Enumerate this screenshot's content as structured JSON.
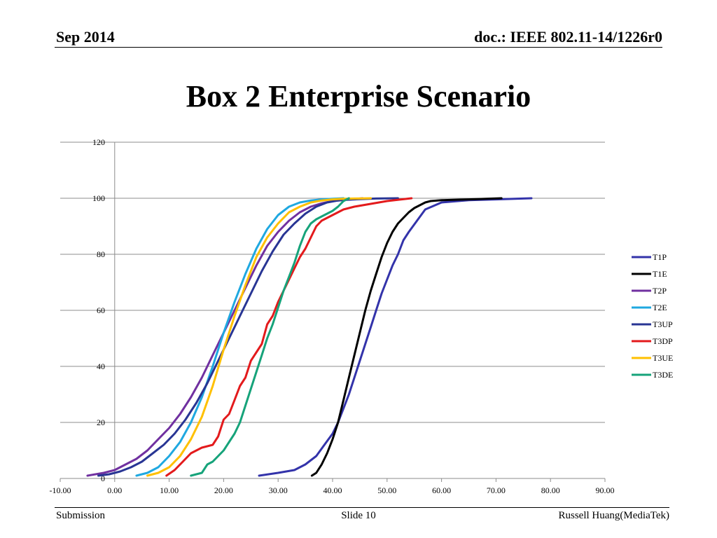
{
  "header": {
    "date": "Sep 2014",
    "doc": "doc.: IEEE 802.11-14/1226r0"
  },
  "slide_title": "Box 2 Enterprise Scenario",
  "footer": {
    "left": "Submission",
    "center": "Slide 10",
    "right": "Russell Huang(MediaTek)"
  },
  "chart_data": {
    "type": "line",
    "title": "",
    "xlabel": "",
    "ylabel": "",
    "xlim": [
      -10,
      90
    ],
    "ylim": [
      0,
      120
    ],
    "x_ticks": [
      "-10.00",
      "0.00",
      "10.00",
      "20.00",
      "30.00",
      "40.00",
      "50.00",
      "60.00",
      "70.00",
      "80.00",
      "90.00"
    ],
    "y_ticks": [
      "0",
      "20",
      "40",
      "60",
      "80",
      "100",
      "120"
    ],
    "grid": "horizontal",
    "legend_position": "right",
    "series": [
      {
        "name": "T1P",
        "color": "#3333aa",
        "x": [
          26.5,
          30,
          33,
          35,
          37,
          38.5,
          40,
          41,
          42,
          43,
          44,
          45,
          46,
          47,
          48,
          49,
          50,
          51,
          52,
          53,
          54,
          55.5,
          57,
          60,
          65,
          70,
          76.5
        ],
        "y": [
          1,
          2,
          3,
          5,
          8,
          12,
          16,
          20,
          25,
          30,
          36,
          42,
          48,
          54,
          60,
          66,
          71,
          76,
          80,
          85,
          88,
          92,
          96,
          98.5,
          99.3,
          99.6,
          100
        ]
      },
      {
        "name": "T1E",
        "color": "#000000",
        "x": [
          36.2,
          37,
          38,
          39,
          40,
          41,
          42,
          43,
          44,
          45,
          46,
          47,
          48,
          49,
          50,
          51,
          52,
          53,
          54,
          55,
          56,
          57,
          58,
          60,
          65,
          71
        ],
        "y": [
          1,
          2,
          5,
          9,
          14,
          20,
          28,
          36,
          44,
          52,
          60,
          67,
          73,
          79,
          84,
          88,
          91,
          93,
          95,
          96.5,
          97.5,
          98.5,
          99,
          99.3,
          99.6,
          100
        ]
      },
      {
        "name": "T2P",
        "color": "#7030a0",
        "x": [
          -5,
          -2,
          0,
          2,
          4,
          6,
          8,
          10,
          12,
          14,
          16,
          18,
          20,
          22,
          24,
          26,
          28,
          30,
          32,
          34,
          36,
          38,
          40,
          42,
          44,
          45.5
        ],
        "y": [
          1,
          2,
          3,
          5,
          7,
          10,
          14,
          18,
          23,
          29,
          36,
          44,
          52,
          60,
          68,
          76,
          83,
          88,
          92,
          95,
          97,
          98.2,
          99,
          99.4,
          99.7,
          100
        ]
      },
      {
        "name": "T2E",
        "color": "#1fa8e0",
        "x": [
          4,
          6,
          8,
          10,
          12,
          14,
          16,
          18,
          20,
          22,
          24,
          26,
          28,
          30,
          32,
          34,
          36,
          38,
          40,
          42
        ],
        "y": [
          1,
          2,
          4,
          8,
          13,
          20,
          29,
          40,
          52,
          63,
          73,
          82,
          89,
          94,
          97,
          98.5,
          99.2,
          99.6,
          99.8,
          100
        ]
      },
      {
        "name": "T3UP",
        "color": "#283594",
        "x": [
          -3,
          -1,
          1,
          3,
          5,
          7,
          9,
          11,
          13,
          15,
          17,
          19,
          21,
          23,
          25,
          27,
          29,
          31,
          33,
          35,
          37,
          39,
          41,
          43,
          45,
          48,
          52
        ],
        "y": [
          1,
          1.5,
          2.5,
          4,
          6,
          9,
          12,
          16,
          21,
          27,
          34,
          42,
          50,
          58,
          66,
          74,
          81,
          87,
          91,
          94.5,
          97,
          98.5,
          99.2,
          99.5,
          99.7,
          99.9,
          100
        ]
      },
      {
        "name": "T3DP",
        "color": "#e31a1c",
        "x": [
          9.5,
          11,
          12.5,
          14,
          16,
          18,
          19,
          20,
          21,
          22,
          23,
          24,
          25,
          26,
          27,
          28,
          29,
          30,
          31,
          32,
          33,
          34,
          35,
          36,
          37,
          38,
          39,
          40,
          41,
          42,
          44,
          47,
          50,
          54.5
        ],
        "y": [
          1,
          3,
          6,
          9,
          11,
          12,
          15,
          21,
          23,
          28,
          33,
          36,
          42,
          45,
          48,
          55,
          58,
          63,
          67,
          71,
          75,
          79,
          82,
          86,
          90,
          92,
          93,
          94,
          95,
          96,
          97,
          98,
          99,
          100
        ]
      },
      {
        "name": "T3UE",
        "color": "#ffc000",
        "x": [
          6,
          8,
          10,
          12,
          14,
          16,
          18,
          20,
          22,
          24,
          26,
          28,
          30,
          32,
          34,
          36,
          38,
          40,
          42,
          44,
          47
        ],
        "y": [
          1,
          2,
          4,
          8,
          14,
          22,
          33,
          46,
          58,
          69,
          79,
          86,
          91,
          95,
          97,
          98.5,
          99.2,
          99.6,
          99.8,
          99.9,
          100
        ]
      },
      {
        "name": "T3DE",
        "color": "#16a37a",
        "x": [
          14,
          16,
          17,
          18,
          19,
          20,
          21,
          22,
          23,
          24,
          25,
          26,
          27,
          28,
          29,
          30,
          31,
          32,
          33,
          34,
          35,
          36,
          37,
          38,
          39,
          40,
          41,
          42,
          43
        ],
        "y": [
          1,
          2,
          5,
          6,
          8,
          10,
          13,
          16,
          20,
          26,
          32,
          38,
          44,
          50,
          55,
          61,
          67,
          72,
          77,
          83,
          88,
          91,
          92.5,
          93.5,
          94.5,
          95.5,
          97,
          99,
          100
        ]
      }
    ]
  }
}
